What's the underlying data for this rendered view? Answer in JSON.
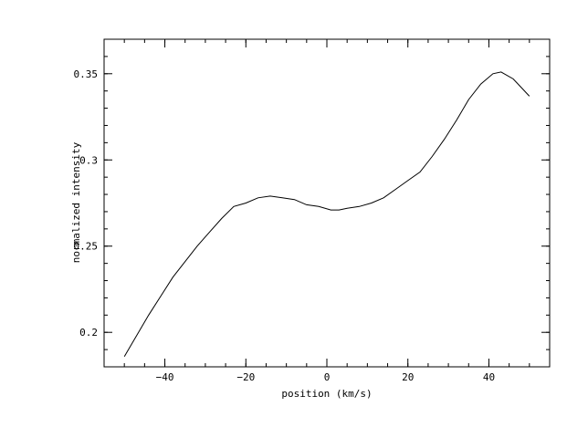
{
  "chart_data": {
    "type": "line",
    "title": "",
    "xlabel": "position (km/s)",
    "ylabel": "normalized intensity",
    "xlim": [
      -55,
      55
    ],
    "ylim": [
      0.18,
      0.37
    ],
    "x_major_ticks": [
      -40,
      -20,
      0,
      20,
      40
    ],
    "x_tick_labels": [
      "−40",
      "−20",
      "0",
      "20",
      "40"
    ],
    "x_minor_step": 5,
    "y_major_ticks": [
      0.2,
      0.25,
      0.3,
      0.35
    ],
    "y_tick_labels": [
      "0.2",
      "0.25",
      "0.3",
      "0.35"
    ],
    "y_minor_step": 0.01,
    "grid": false,
    "series": [
      {
        "color": "#000000",
        "x": [
          -50,
          -47,
          -44,
          -41,
          -38,
          -35,
          -32,
          -29,
          -26,
          -23,
          -20,
          -17,
          -14,
          -11,
          -8,
          -5,
          -2,
          1,
          3,
          5,
          8,
          11,
          14,
          17,
          20,
          23,
          26,
          29,
          32,
          35,
          38,
          41,
          43,
          46,
          48,
          50
        ],
        "y": [
          0.186,
          0.198,
          0.21,
          0.221,
          0.232,
          0.241,
          0.25,
          0.258,
          0.266,
          0.273,
          0.275,
          0.278,
          0.279,
          0.278,
          0.277,
          0.274,
          0.273,
          0.271,
          0.271,
          0.272,
          0.273,
          0.275,
          0.278,
          0.283,
          0.288,
          0.293,
          0.302,
          0.312,
          0.323,
          0.335,
          0.344,
          0.35,
          0.351,
          0.347,
          0.342,
          0.337
        ]
      }
    ]
  }
}
